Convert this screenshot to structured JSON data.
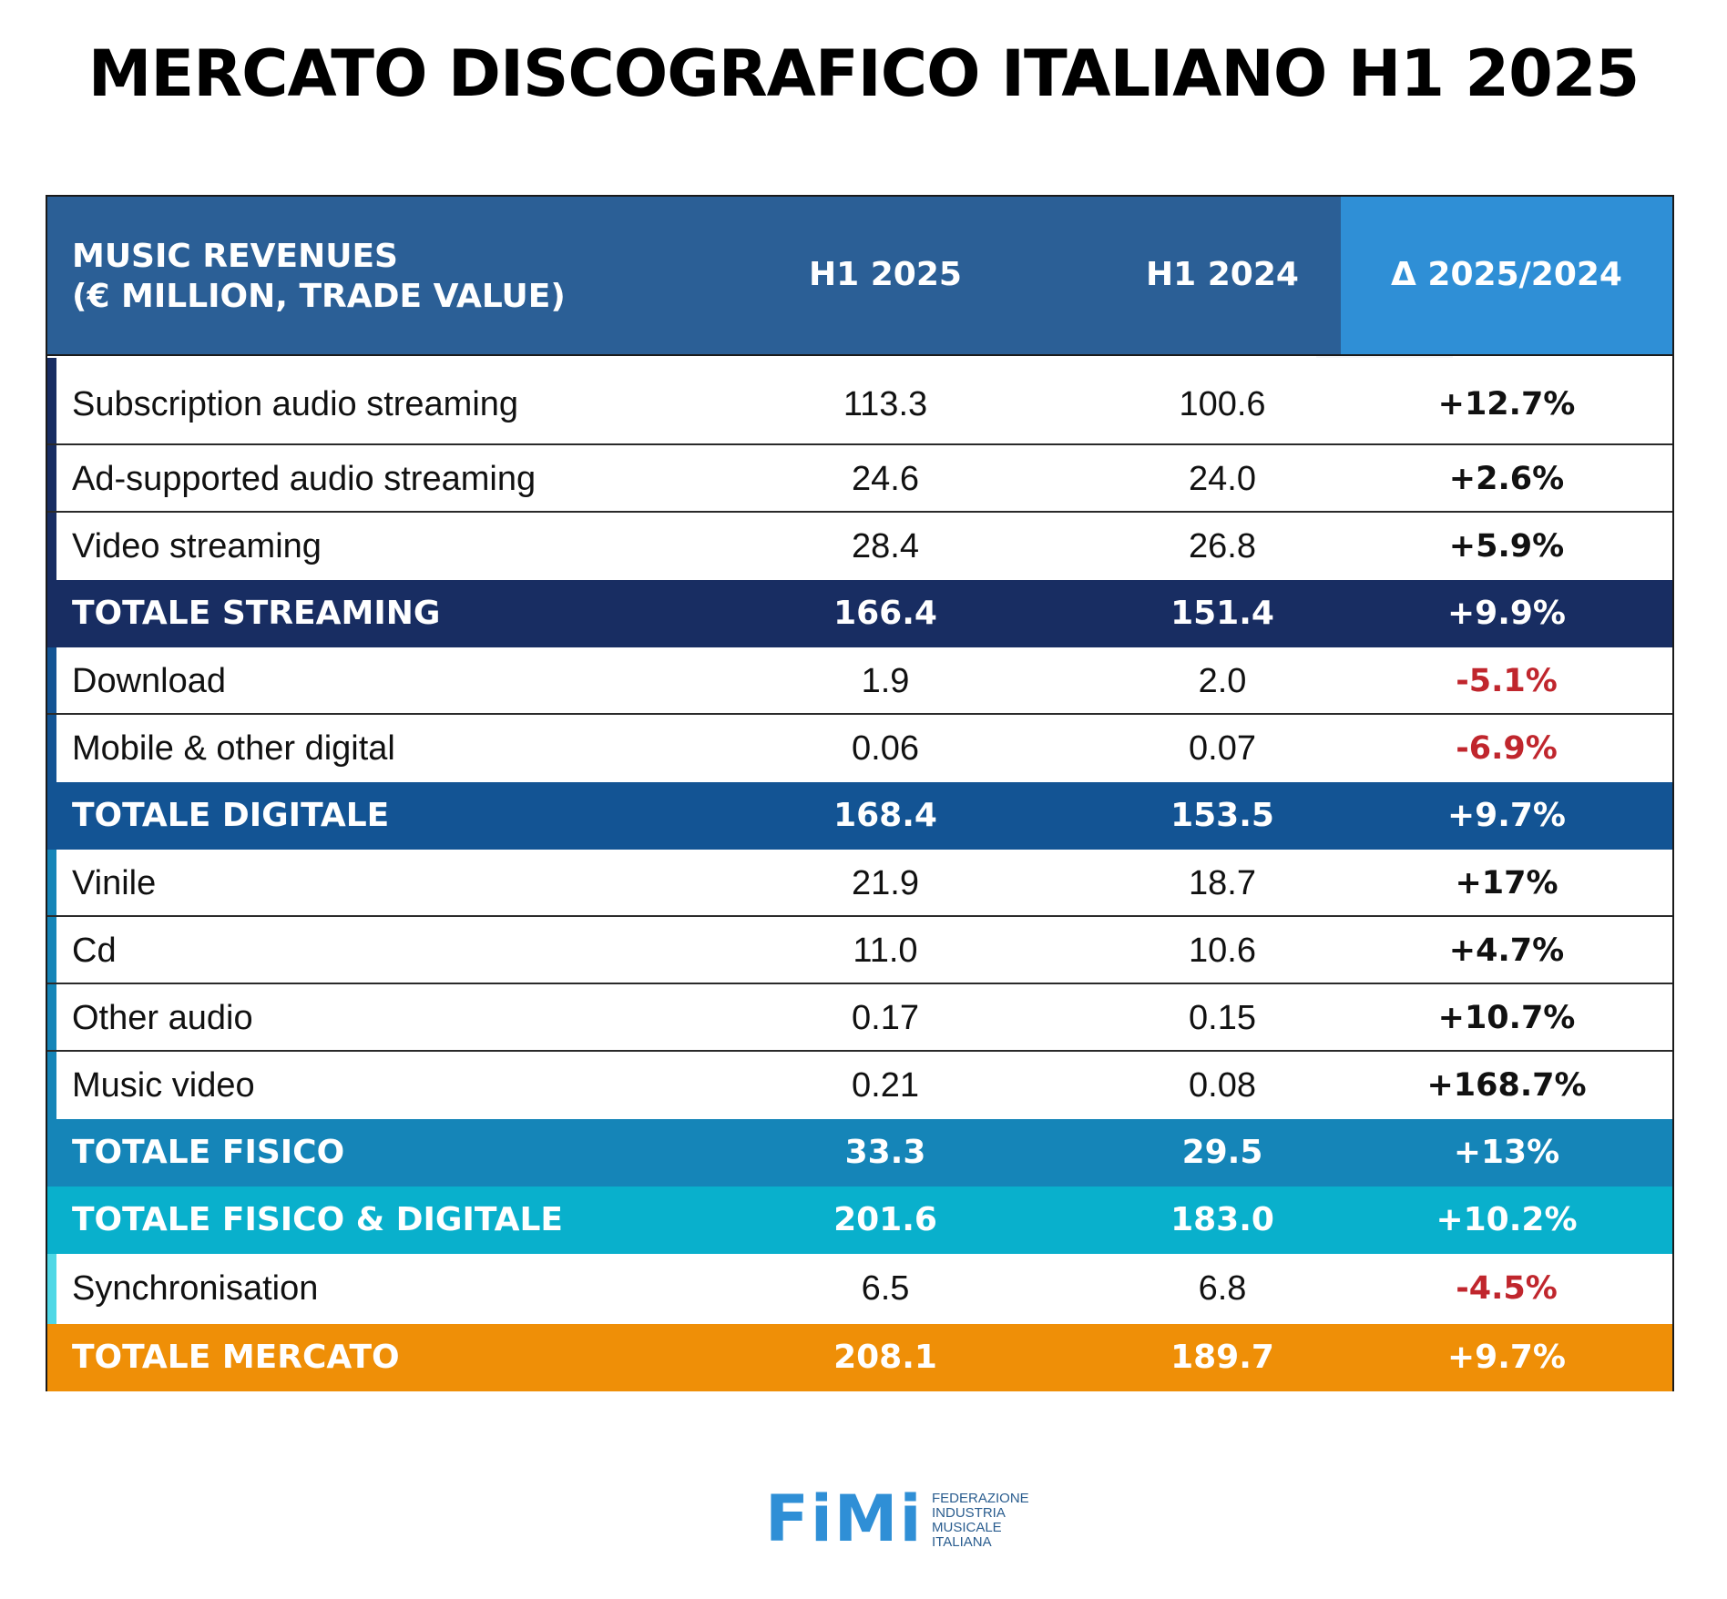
{
  "title": "MERCATO DISCOGRAFICO ITALIANO H1 2025",
  "chart_data": {
    "type": "table",
    "title": "MERCATO DISCOGRAFICO ITALIANO H1 2025",
    "header": {
      "label_line1": "MUSIC REVENUES",
      "label_line2": "(€ MILLION, TRADE VALUE)",
      "col1": "H1 2025",
      "col2": "H1 2024",
      "col3": "Δ 2025/2024"
    },
    "rows": [
      {
        "name": "Subscription audio streaming",
        "h1_2025": "113.3",
        "h1_2024": "100.6",
        "delta": "+12.7%",
        "total": false
      },
      {
        "name": "Ad-supported audio streaming",
        "h1_2025": "24.6",
        "h1_2024": "24.0",
        "delta": "+2.6%",
        "total": false
      },
      {
        "name": "Video streaming",
        "h1_2025": "28.4",
        "h1_2024": "26.8",
        "delta": "+5.9%",
        "total": false
      },
      {
        "name": "TOTALE STREAMING",
        "h1_2025": "166.4",
        "h1_2024": "151.4",
        "delta": "+9.9%",
        "total": true
      },
      {
        "name": "Download",
        "h1_2025": "1.9",
        "h1_2024": "2.0",
        "delta": "-5.1%",
        "total": false
      },
      {
        "name": "Mobile & other digital",
        "h1_2025": "0.06",
        "h1_2024": "0.07",
        "delta": "-6.9%",
        "total": false
      },
      {
        "name": "TOTALE DIGITALE",
        "h1_2025": "168.4",
        "h1_2024": "153.5",
        "delta": "+9.7%",
        "total": true
      },
      {
        "name": "Vinile",
        "h1_2025": "21.9",
        "h1_2024": "18.7",
        "delta": "+17%",
        "total": false
      },
      {
        "name": "Cd",
        "h1_2025": "11.0",
        "h1_2024": "10.6",
        "delta": "+4.7%",
        "total": false
      },
      {
        "name": "Other audio",
        "h1_2025": "0.17",
        "h1_2024": "0.15",
        "delta": "+10.7%",
        "total": false
      },
      {
        "name": "Music video",
        "h1_2025": "0.21",
        "h1_2024": "0.08",
        "delta": "+168.7%",
        "total": false
      },
      {
        "name": "TOTALE FISICO",
        "h1_2025": "33.3",
        "h1_2024": "29.5",
        "delta": "+13%",
        "total": true
      },
      {
        "name": "TOTALE FISICO & DIGITALE",
        "h1_2025": "201.6",
        "h1_2024": "183.0",
        "delta": "+10.2%",
        "total": true
      },
      {
        "name": "Synchronisation",
        "h1_2025": "6.5",
        "h1_2024": "6.8",
        "delta": "-4.5%",
        "total": false
      },
      {
        "name": "TOTALE MERCATO",
        "h1_2025": "208.1",
        "h1_2024": "189.7",
        "delta": "+9.7%",
        "total": true
      }
    ]
  },
  "colors": {
    "header": "#2b5f96",
    "header_delta": "#2f8fd6",
    "totale_streaming": "#182d62",
    "totale_digitale": "#135494",
    "totale_fisico": "#1585b8",
    "totale_fisico_digitale": "#09b0cc",
    "totale_mercato": "#ef8f07",
    "negative": "#c0262d",
    "accent_streaming": "#182d62",
    "accent_digital": "#135494",
    "accent_physical": "#1585b8",
    "accent_sync": "#4fd8e6"
  },
  "logo": {
    "word": "FiMi",
    "lines": [
      "FEDERAZIONE",
      "INDUSTRIA",
      "MUSICALE",
      "ITALIANA"
    ]
  }
}
